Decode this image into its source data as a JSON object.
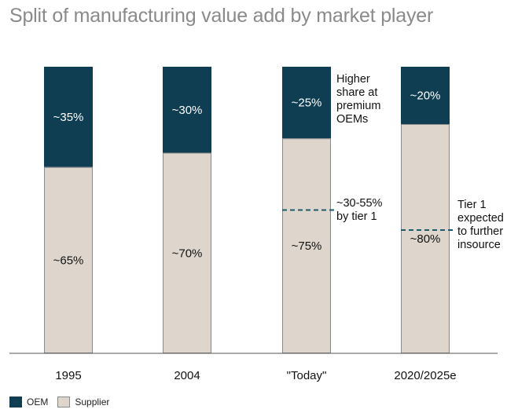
{
  "title": "Split of manufacturing value add by market player",
  "colors": {
    "oem": "#0f3d52",
    "supplier": "#ded6cd",
    "axis": "#555555",
    "dash": "#1d5a6c"
  },
  "annotations": {
    "premium": [
      "Higher",
      "share at",
      "premium",
      "OEMs"
    ],
    "tier1_share": [
      "~30-55%",
      "by tier 1"
    ],
    "tier1_insource": [
      "Tier 1",
      "expected",
      "to further",
      "insource"
    ]
  },
  "legend": {
    "oem": "OEM",
    "supplier": "Supplier"
  },
  "chart_data": {
    "type": "bar",
    "stacked": true,
    "categories": [
      "1995",
      "2004",
      "\"Today\"",
      "2020/2025e"
    ],
    "series": [
      {
        "name": "OEM",
        "values": [
          35,
          30,
          25,
          20
        ],
        "labels": [
          "~35%",
          "~30%",
          "~25%",
          "~20%"
        ]
      },
      {
        "name": "Supplier",
        "values": [
          65,
          70,
          75,
          80
        ],
        "labels": [
          "~65%",
          "~70%",
          "~75%",
          "~80%"
        ]
      }
    ],
    "tier1_marker": [
      null,
      null,
      50,
      43
    ],
    "ylim": [
      0,
      100
    ],
    "grid": false,
    "legend_position": "bottom-left"
  }
}
